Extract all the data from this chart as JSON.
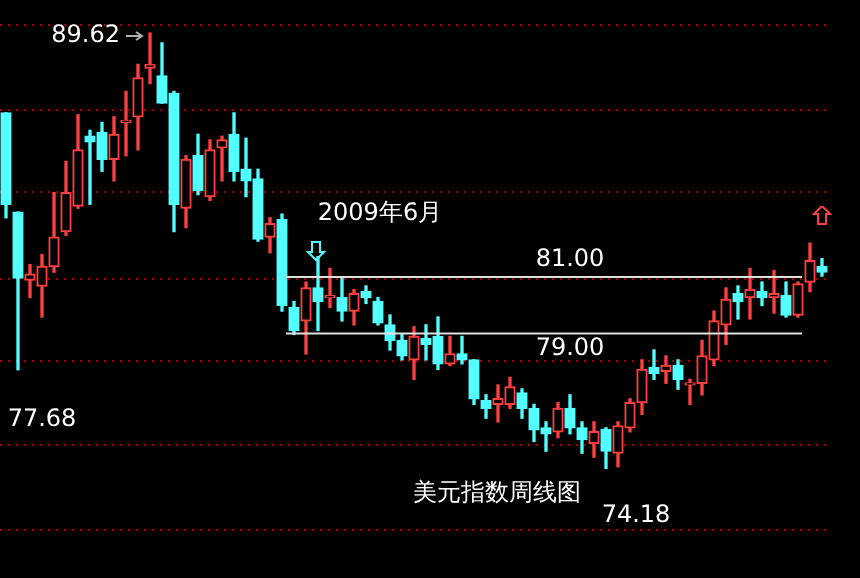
{
  "chart_data": {
    "type": "candlestick",
    "title": "美元指数周线图",
    "categories": [
      null,
      null,
      null,
      null,
      null,
      null,
      null,
      null,
      null,
      null,
      null,
      null,
      null,
      null,
      null,
      null,
      null,
      null,
      null,
      null,
      null,
      null,
      null,
      null,
      null,
      null,
      null,
      null,
      null,
      null,
      null,
      null,
      null,
      null,
      null,
      null,
      null,
      null,
      null,
      null,
      null,
      null,
      null,
      null,
      null,
      null,
      null,
      null,
      null,
      null,
      null,
      null,
      null,
      null,
      null,
      null,
      null,
      null,
      null,
      null,
      null,
      null,
      null,
      null,
      null,
      null,
      null,
      null,
      null
    ],
    "ohlc": [
      [
        86.79,
        86.79,
        83.07,
        83.55
      ],
      [
        83.27,
        83.27,
        77.68,
        80.93
      ],
      [
        80.86,
        81.41,
        80.24,
        81.07
      ],
      [
        80.65,
        81.76,
        79.55,
        81.34
      ],
      [
        81.34,
        83.96,
        81.14,
        82.38
      ],
      [
        82.58,
        85.07,
        82.45,
        83.96
      ],
      [
        83.48,
        86.72,
        83.41,
        85.48
      ],
      [
        85.96,
        86.17,
        83.55,
        85.76
      ],
      [
        86.1,
        86.45,
        84.72,
        85.14
      ],
      [
        85.14,
        86.65,
        84.38,
        86.03
      ],
      [
        86.45,
        87.55,
        85.27,
        86.51
      ],
      [
        86.65,
        88.51,
        85.48,
        88.03
      ],
      [
        88.38,
        89.62,
        87.83,
        88.51
      ],
      [
        88.1,
        89.27,
        87.14,
        87.14
      ],
      [
        87.48,
        87.55,
        82.58,
        83.55
      ],
      [
        83.41,
        85.27,
        82.72,
        85.14
      ],
      [
        85.27,
        86.03,
        83.89,
        84.03
      ],
      [
        83.82,
        85.83,
        83.69,
        85.48
      ],
      [
        85.55,
        85.96,
        84.38,
        85.83
      ],
      [
        86.03,
        86.79,
        84.38,
        84.72
      ],
      [
        84.79,
        85.89,
        83.82,
        84.38
      ],
      [
        84.45,
        84.79,
        82.24,
        82.31
      ],
      [
        82.38,
        83.07,
        81.83,
        82.86
      ],
      [
        83.0,
        83.2,
        79.76,
        79.96
      ],
      [
        79.89,
        80.1,
        78.93,
        79.07
      ],
      [
        79.41,
        80.79,
        78.24,
        80.58
      ],
      [
        80.58,
        81.69,
        79.07,
        80.1
      ],
      [
        80.24,
        81.27,
        79.89,
        80.31
      ],
      [
        80.24,
        80.93,
        79.41,
        79.76
      ],
      [
        79.76,
        80.52,
        79.27,
        80.38
      ],
      [
        80.45,
        80.65,
        80.03,
        80.24
      ],
      [
        80.1,
        80.24,
        79.27,
        79.34
      ],
      [
        79.27,
        79.62,
        78.38,
        78.72
      ],
      [
        78.72,
        78.93,
        78.03,
        78.17
      ],
      [
        78.03,
        79.2,
        77.34,
        78.86
      ],
      [
        78.79,
        79.27,
        78.03,
        78.58
      ],
      [
        78.86,
        79.55,
        77.69,
        77.89
      ],
      [
        77.89,
        78.86,
        77.83,
        78.24
      ],
      [
        78.24,
        78.86,
        77.89,
        78.03
      ],
      [
        78.03,
        78.03,
        76.45,
        76.65
      ],
      [
        76.58,
        76.79,
        75.96,
        76.31
      ],
      [
        76.45,
        77.14,
        75.83,
        76.65
      ],
      [
        76.45,
        77.41,
        76.31,
        77.07
      ],
      [
        76.86,
        77.0,
        75.96,
        76.31
      ],
      [
        76.31,
        76.45,
        75.14,
        75.55
      ],
      [
        75.62,
        75.83,
        74.79,
        75.41
      ],
      [
        75.48,
        76.51,
        75.27,
        76.31
      ],
      [
        76.31,
        76.79,
        75.41,
        75.62
      ],
      [
        75.62,
        75.83,
        74.72,
        75.2
      ],
      [
        75.07,
        75.83,
        74.58,
        75.48
      ],
      [
        75.55,
        75.62,
        74.18,
        74.79
      ],
      [
        74.72,
        75.83,
        74.24,
        75.69
      ],
      [
        75.62,
        76.65,
        75.48,
        76.51
      ],
      [
        76.51,
        78.03,
        76.1,
        77.69
      ],
      [
        77.76,
        78.38,
        77.34,
        77.55
      ],
      [
        77.62,
        78.17,
        77.2,
        77.83
      ],
      [
        77.83,
        78.03,
        76.99,
        77.34
      ],
      [
        77.14,
        77.34,
        76.45,
        77.2
      ],
      [
        77.2,
        78.72,
        76.79,
        78.17
      ],
      [
        78.03,
        79.76,
        77.83,
        79.41
      ],
      [
        79.27,
        80.58,
        78.58,
        80.17
      ],
      [
        80.38,
        80.65,
        79.48,
        80.1
      ],
      [
        80.24,
        81.27,
        79.48,
        80.52
      ],
      [
        80.45,
        80.79,
        79.96,
        80.24
      ],
      [
        80.24,
        81.2,
        79.69,
        80.38
      ],
      [
        80.31,
        80.79,
        79.55,
        79.62
      ],
      [
        79.62,
        80.79,
        79.55,
        80.72
      ],
      [
        80.79,
        82.17,
        80.45,
        81.55
      ],
      [
        81.34,
        81.62,
        81.0,
        81.14
      ]
    ],
    "colors": [
      "#54ffff",
      "#54ffff",
      "#ff4040",
      "#ff4040",
      "#ff4040",
      "#ff4040",
      "#ff4040",
      "#54ffff",
      "#54ffff",
      "#ff4040",
      "#ff4040",
      "#ff4040",
      "#ff4040",
      "#54ffff",
      "#54ffff",
      "#ff4040",
      "#54ffff",
      "#ff4040",
      "#ff4040",
      "#54ffff",
      "#54ffff",
      "#54ffff",
      "#ff4040",
      "#54ffff",
      "#54ffff",
      "#ff4040",
      "#54ffff",
      "#ff4040",
      "#54ffff",
      "#ff4040",
      "#54ffff",
      "#54ffff",
      "#54ffff",
      "#54ffff",
      "#ff4040",
      "#54ffff",
      "#54ffff",
      "#ff4040",
      "#54ffff",
      "#54ffff",
      "#54ffff",
      "#ff4040",
      "#ff4040",
      "#54ffff",
      "#54ffff",
      "#54ffff",
      "#ff4040",
      "#54ffff",
      "#54ffff",
      "#ff4040",
      "#54ffff",
      "#ff4040",
      "#ff4040",
      "#ff4040",
      "#54ffff",
      "#ff4040",
      "#54ffff",
      "#ff4040",
      "#ff4040",
      "#ff4040",
      "#ff4040",
      "#54ffff",
      "#ff4040",
      "#54ffff",
      "#ff4040",
      "#54ffff",
      "#ff4040",
      "#ff4040",
      "#54ffff"
    ],
    "yticks": [
      {
        "value": 72.0,
        "label": null
      },
      {
        "value": 75.0,
        "label": null
      },
      {
        "value": 78.0,
        "label": null
      },
      {
        "value": 80.9,
        "label": null
      },
      {
        "value": 84.0,
        "label": null
      },
      {
        "value": 86.9,
        "label": null
      },
      {
        "value": 89.9,
        "label": null
      }
    ],
    "grid": "y",
    "tick_labels": false,
    "legend": false,
    "ref_lines": [
      {
        "axis": "y",
        "value": 81.0,
        "label": "81.00",
        "color": "#e0e0e0"
      },
      {
        "axis": "y",
        "value": 79.0,
        "label": "79.00",
        "color": "#e0e0e0"
      }
    ],
    "annotations": [
      "89.62",
      "77.68",
      "74.18",
      "2009年6月"
    ]
  }
}
